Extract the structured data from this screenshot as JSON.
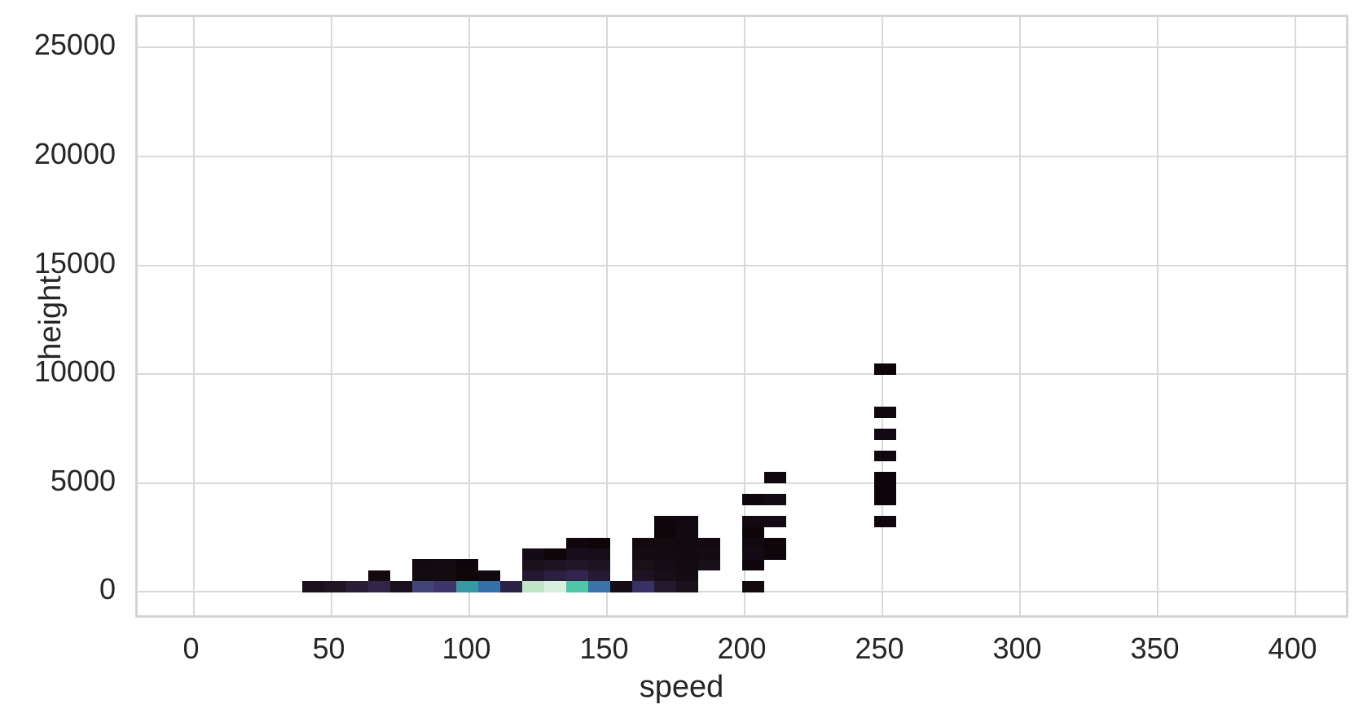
{
  "figure": {
    "background": "#ffffff",
    "grid_color": "#d9d9d9",
    "spine_color": "#d4d4d4",
    "text_color": "#262626"
  },
  "chart_data": {
    "type": "heatmap",
    "subtype": "2d-histogram",
    "title": "",
    "xlabel": "speed",
    "ylabel": "height",
    "xlim": [
      -20,
      420
    ],
    "ylim": [
      -1280,
      26400
    ],
    "x_ticks": [
      0,
      50,
      100,
      150,
      200,
      250,
      300,
      350,
      400
    ],
    "y_ticks": [
      0,
      5000,
      10000,
      15000,
      20000,
      25000
    ],
    "grid": "on",
    "legend": "none",
    "colormap": "mako",
    "bins": {
      "speed_start": 40,
      "speed_width": 8,
      "height_start": 0,
      "height_width": 500
    },
    "cells_note": "c = speed-bin index (speed = 40+8c..48+8c), r = height-bin index (height = 500r..500r+500), v = approx normalized count (mako scale), color = rendered cell color",
    "cells": [
      {
        "c": 0,
        "r": 0,
        "color": "#1a111c",
        "v": 0.1
      },
      {
        "c": 1,
        "r": 0,
        "color": "#1e1424",
        "v": 0.12
      },
      {
        "c": 2,
        "r": 0,
        "color": "#291e38",
        "v": 0.17
      },
      {
        "c": 3,
        "r": 0,
        "color": "#322548",
        "v": 0.21
      },
      {
        "c": 4,
        "r": 0,
        "color": "#1a101d",
        "v": 0.1
      },
      {
        "c": 5,
        "r": 0,
        "color": "#414379",
        "v": 0.36
      },
      {
        "c": 6,
        "r": 0,
        "color": "#3e356b",
        "v": 0.28
      },
      {
        "c": 7,
        "r": 0,
        "color": "#3897a2",
        "v": 0.6
      },
      {
        "c": 8,
        "r": 0,
        "color": "#3471aa",
        "v": 0.5
      },
      {
        "c": 9,
        "r": 0,
        "color": "#2c2245",
        "v": 0.2
      },
      {
        "c": 10,
        "r": 0,
        "color": "#bfe5c6",
        "v": 0.9
      },
      {
        "c": 11,
        "r": 0,
        "color": "#d8f1de",
        "v": 0.97
      },
      {
        "c": 12,
        "r": 0,
        "color": "#52c5a8",
        "v": 0.72
      },
      {
        "c": 13,
        "r": 0,
        "color": "#3973a9",
        "v": 0.5
      },
      {
        "c": 14,
        "r": 0,
        "color": "#160c15",
        "v": 0.08
      },
      {
        "c": 15,
        "r": 0,
        "color": "#393064",
        "v": 0.27
      },
      {
        "c": 16,
        "r": 0,
        "color": "#241a30",
        "v": 0.15
      },
      {
        "c": 17,
        "r": 0,
        "color": "#1a111d",
        "v": 0.1
      },
      {
        "c": 20,
        "r": 0,
        "color": "#130a10",
        "v": 0.06
      },
      {
        "c": 3,
        "r": 1,
        "color": "#130a10",
        "v": 0.06
      },
      {
        "c": 5,
        "r": 1,
        "color": "#130b10",
        "v": 0.06
      },
      {
        "c": 6,
        "r": 1,
        "color": "#140c11",
        "v": 0.06
      },
      {
        "c": 7,
        "r": 1,
        "color": "#0e0609",
        "v": 0.02
      },
      {
        "c": 8,
        "r": 1,
        "color": "#110910",
        "v": 0.04
      },
      {
        "c": 10,
        "r": 1,
        "color": "#221830",
        "v": 0.14
      },
      {
        "c": 11,
        "r": 1,
        "color": "#2a2040",
        "v": 0.17
      },
      {
        "c": 12,
        "r": 1,
        "color": "#30254c",
        "v": 0.2
      },
      {
        "c": 13,
        "r": 1,
        "color": "#241a31",
        "v": 0.15
      },
      {
        "c": 15,
        "r": 1,
        "color": "#1d1322",
        "v": 0.11
      },
      {
        "c": 16,
        "r": 1,
        "color": "#170e18",
        "v": 0.09
      },
      {
        "c": 17,
        "r": 1,
        "color": "#140c13",
        "v": 0.07
      },
      {
        "c": 5,
        "r": 2,
        "color": "#120a0f",
        "v": 0.05
      },
      {
        "c": 6,
        "r": 2,
        "color": "#130b10",
        "v": 0.06
      },
      {
        "c": 7,
        "r": 2,
        "color": "#0d0509",
        "v": 0.01
      },
      {
        "c": 10,
        "r": 2,
        "color": "#191019",
        "v": 0.1
      },
      {
        "c": 11,
        "r": 2,
        "color": "#1d1322",
        "v": 0.11
      },
      {
        "c": 12,
        "r": 2,
        "color": "#221729",
        "v": 0.14
      },
      {
        "c": 13,
        "r": 2,
        "color": "#1e1322",
        "v": 0.12
      },
      {
        "c": 15,
        "r": 2,
        "color": "#1a1018",
        "v": 0.1
      },
      {
        "c": 16,
        "r": 2,
        "color": "#150d15",
        "v": 0.08
      },
      {
        "c": 17,
        "r": 2,
        "color": "#130b11",
        "v": 0.06
      },
      {
        "c": 18,
        "r": 2,
        "color": "#171018",
        "v": 0.09
      },
      {
        "c": 20,
        "r": 2,
        "color": "#10070e",
        "v": 0.04
      },
      {
        "c": 10,
        "r": 3,
        "color": "#140b16",
        "v": 0.07
      },
      {
        "c": 11,
        "r": 3,
        "color": "#0e0609",
        "v": 0.02
      },
      {
        "c": 12,
        "r": 3,
        "color": "#160e1b",
        "v": 0.08
      },
      {
        "c": 13,
        "r": 3,
        "color": "#150d18",
        "v": 0.08
      },
      {
        "c": 15,
        "r": 3,
        "color": "#150c13",
        "v": 0.07
      },
      {
        "c": 16,
        "r": 3,
        "color": "#140b12",
        "v": 0.07
      },
      {
        "c": 17,
        "r": 3,
        "color": "#130a11",
        "v": 0.06
      },
      {
        "c": 18,
        "r": 3,
        "color": "#140c13",
        "v": 0.07
      },
      {
        "c": 20,
        "r": 3,
        "color": "#140b16",
        "v": 0.07
      },
      {
        "c": 21,
        "r": 3,
        "color": "#0f070b",
        "v": 0.03
      },
      {
        "c": 12,
        "r": 4,
        "color": "#0f070d",
        "v": 0.03
      },
      {
        "c": 13,
        "r": 4,
        "color": "#0d0509",
        "v": 0.01
      },
      {
        "c": 15,
        "r": 4,
        "color": "#130a10",
        "v": 0.06
      },
      {
        "c": 16,
        "r": 4,
        "color": "#120a0f",
        "v": 0.05
      },
      {
        "c": 17,
        "r": 4,
        "color": "#110910",
        "v": 0.04
      },
      {
        "c": 18,
        "r": 4,
        "color": "#120a10",
        "v": 0.05
      },
      {
        "c": 20,
        "r": 4,
        "color": "#120a11",
        "v": 0.05
      },
      {
        "c": 21,
        "r": 4,
        "color": "#0e0609",
        "v": 0.02
      },
      {
        "c": 16,
        "r": 5,
        "color": "#0e0609",
        "v": 0.02
      },
      {
        "c": 17,
        "r": 5,
        "color": "#120a10",
        "v": 0.05
      },
      {
        "c": 20,
        "r": 5,
        "color": "#0e0509",
        "v": 0.02
      },
      {
        "c": 16,
        "r": 6,
        "color": "#0f070c",
        "v": 0.03
      },
      {
        "c": 17,
        "r": 6,
        "color": "#110911",
        "v": 0.04
      },
      {
        "c": 20,
        "r": 6,
        "color": "#130a11",
        "v": 0.06
      },
      {
        "c": 21,
        "r": 6,
        "color": "#120a12",
        "v": 0.05
      },
      {
        "c": 26,
        "r": 6,
        "color": "#10080e",
        "v": 0.03
      },
      {
        "c": 20,
        "r": 8,
        "color": "#0f070d",
        "v": 0.03
      },
      {
        "c": 21,
        "r": 8,
        "color": "#140c14",
        "v": 0.07
      },
      {
        "c": 26,
        "r": 8,
        "color": "#0d0509",
        "v": 0.01
      },
      {
        "c": 26,
        "r": 9,
        "color": "#0d0509",
        "v": 0.01
      },
      {
        "c": 21,
        "r": 10,
        "color": "#10080d",
        "v": 0.03
      },
      {
        "c": 26,
        "r": 10,
        "color": "#0d0509",
        "v": 0.01
      },
      {
        "c": 26,
        "r": 12,
        "color": "#10080e",
        "v": 0.03
      },
      {
        "c": 26,
        "r": 14,
        "color": "#110911",
        "v": 0.04
      },
      {
        "c": 26,
        "r": 16,
        "color": "#10080f",
        "v": 0.03
      },
      {
        "c": 26,
        "r": 20,
        "color": "#0e0609",
        "v": 0.02
      }
    ]
  }
}
